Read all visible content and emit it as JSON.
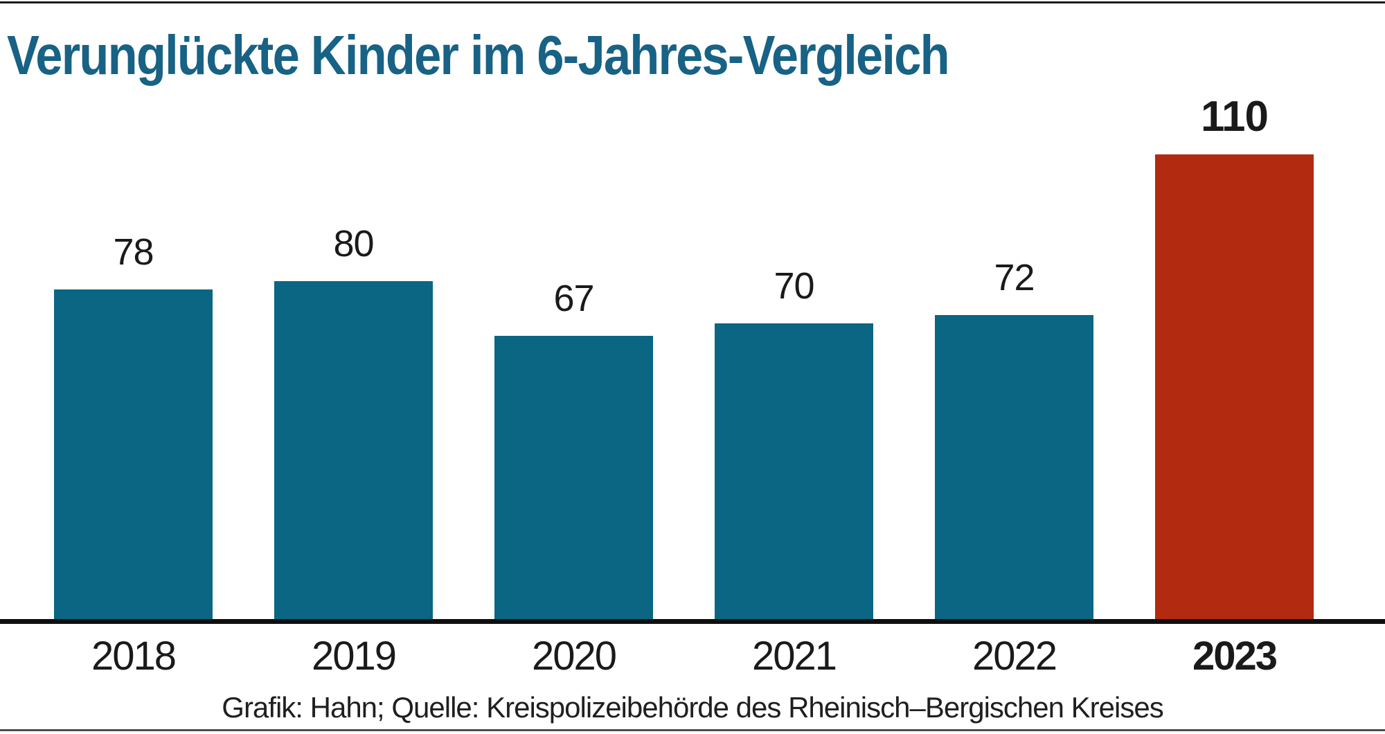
{
  "chart_data": {
    "type": "bar",
    "title": "Verunglückte Kinder im 6-Jahres-Vergleich",
    "categories": [
      "2018",
      "2019",
      "2020",
      "2021",
      "2022",
      "2023"
    ],
    "values": [
      78,
      80,
      67,
      70,
      72,
      110
    ],
    "value_labels_shown": true,
    "highlight_index": 5,
    "highlight_category": "2023",
    "xlabel": "",
    "ylabel": "",
    "ylim": [
      0,
      115
    ],
    "grid": false,
    "legend": false,
    "y_axis_shown": false,
    "x_axis_shown": true
  },
  "source_line": "Grafik: Hahn; Quelle: Kreispolizeibehörde des Rheinisch–Bergischen Kreises",
  "colors": {
    "title": "#176285",
    "bar": "#0a6683",
    "bar_highlight": "#b22a10",
    "axis": "#0f0f0f",
    "label": "#1a1a1a",
    "background": "#ffffff",
    "top_rule": "#1a1a1a",
    "bottom_rule": "#4d4d4d"
  }
}
